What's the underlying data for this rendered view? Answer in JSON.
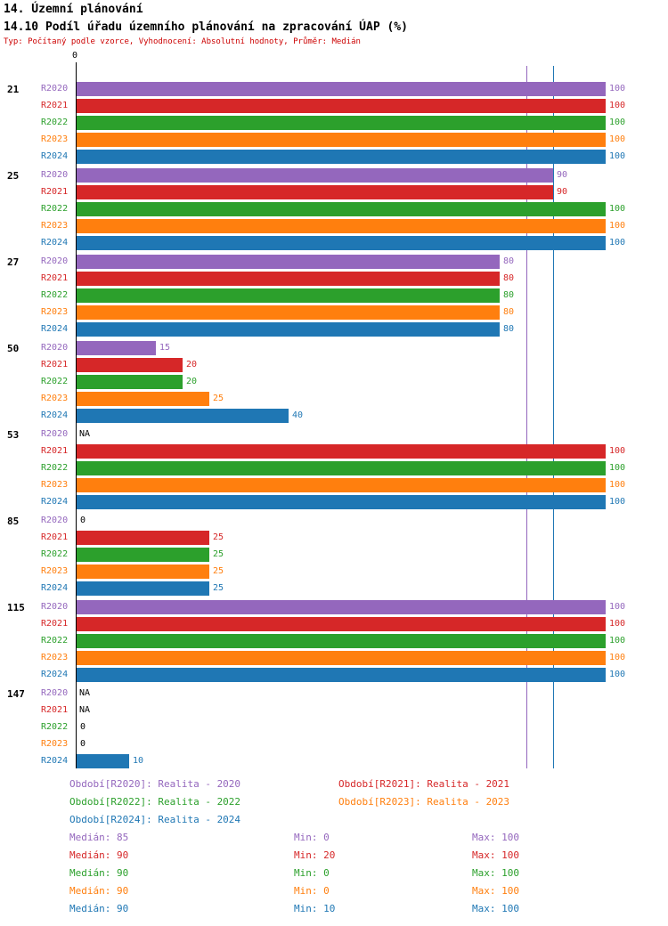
{
  "page": {
    "title": "14. Územní plánování",
    "subtitle": "14.10 Podíl úřadu územního plánování na zpracování ÚAP (%)",
    "info": "Typ: Počítaný podle vzorce, Vyhodnocení: Absolutní hodnoty, Průměr: Medián",
    "info_color": "#cc0000"
  },
  "stats": {
    "median_label": "Medián",
    "min_label": "Min",
    "max_label": "Max"
  },
  "chart_data": {
    "type": "bar",
    "orientation": "horizontal",
    "title": "14.10 Podíl úřadu územního plánování na zpracování ÚAP (%)",
    "xlabel": "",
    "ylabel": "",
    "xlim": [
      0,
      100
    ],
    "x_axis": {
      "min": 0,
      "max": 100,
      "zero_label": "0"
    },
    "na_text": "NA",
    "na_color": "#000000",
    "axis_color": "#000000",
    "series": [
      {
        "id": "R2020",
        "color": "#9467bd",
        "legend": "Období[R2020]: Realita - 2020",
        "median": 85,
        "min": 0,
        "max": 100
      },
      {
        "id": "R2021",
        "color": "#d62728",
        "legend": "Období[R2021]: Realita - 2021",
        "median": 90,
        "min": 20,
        "max": 100
      },
      {
        "id": "R2022",
        "color": "#2ca02c",
        "legend": "Období[R2022]: Realita - 2022",
        "median": 90,
        "min": 0,
        "max": 100
      },
      {
        "id": "R2023",
        "color": "#ff7f0e",
        "legend": "Období[R2023]: Realita - 2023",
        "median": 90,
        "min": 0,
        "max": 100
      },
      {
        "id": "R2024",
        "color": "#1f77b4",
        "legend": "Období[R2024]: Realita - 2024",
        "median": 90,
        "min": 10,
        "max": 100
      }
    ],
    "median_lines": [
      {
        "value": 85,
        "color": "#9467bd"
      },
      {
        "value": 90,
        "color": "#1f77b4"
      }
    ],
    "groups": [
      {
        "label": "21",
        "values": [
          100,
          100,
          100,
          100,
          100
        ]
      },
      {
        "label": "25",
        "values": [
          90,
          90,
          100,
          100,
          100
        ]
      },
      {
        "label": "27",
        "values": [
          80,
          80,
          80,
          80,
          80
        ]
      },
      {
        "label": "50",
        "values": [
          15,
          20,
          20,
          25,
          40
        ]
      },
      {
        "label": "53",
        "values": [
          "NA",
          100,
          100,
          100,
          100
        ]
      },
      {
        "label": "85",
        "values": [
          0,
          25,
          25,
          25,
          25
        ]
      },
      {
        "label": "115",
        "values": [
          100,
          100,
          100,
          100,
          100
        ]
      },
      {
        "label": "147",
        "values": [
          "NA",
          "NA",
          0,
          0,
          10
        ]
      }
    ]
  }
}
